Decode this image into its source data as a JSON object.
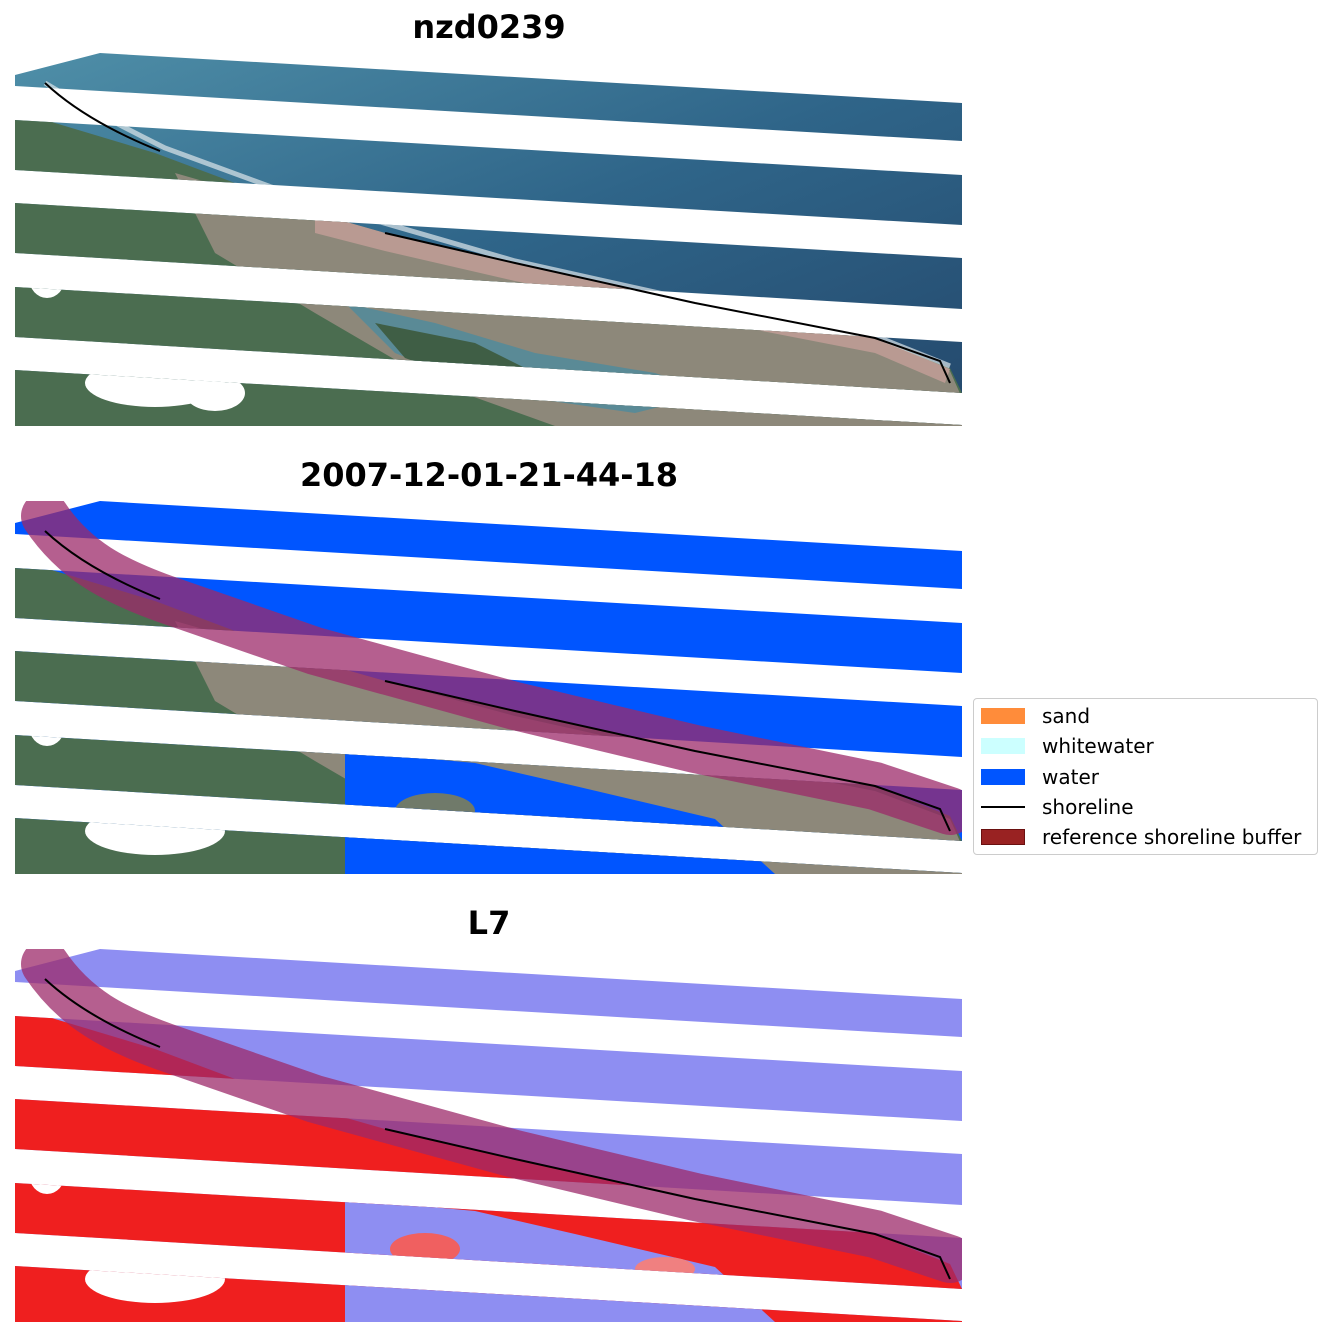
{
  "panels": [
    {
      "title": "nzd0239"
    },
    {
      "title": "2007-12-01-21-44-18"
    },
    {
      "title": "L7"
    }
  ],
  "legend": {
    "items": [
      {
        "label": "sand",
        "color": "#ff8c3a",
        "kind": "patch"
      },
      {
        "label": "whitewater",
        "color": "#ccffff",
        "kind": "patch"
      },
      {
        "label": "water",
        "color": "#0055ff",
        "kind": "patch"
      },
      {
        "label": "shoreline",
        "color": "#000000",
        "kind": "line"
      },
      {
        "label": "reference shoreline buffer",
        "color": "#992222",
        "kind": "patch"
      }
    ]
  },
  "colors": {
    "ocean": "#2e5f86",
    "ocean_light": "#4e8aa6",
    "land_green": "#4a6e52",
    "land_grey": "#8a8a7c",
    "town": "#b09690",
    "water_class": "#0055ff",
    "buffer": "#9c2a6a",
    "index_water": "#8e8ef2",
    "index_land": "#ef1f1f"
  }
}
